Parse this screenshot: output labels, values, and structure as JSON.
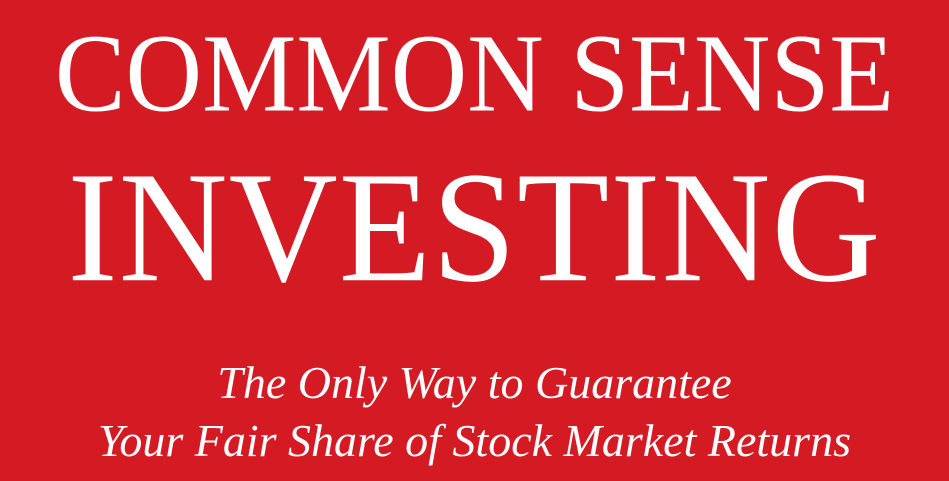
{
  "cover": {
    "background_color": "#d41a22",
    "text_color": "#ffffff",
    "title_lines": [
      "COMMON SENSE",
      "INVESTING"
    ],
    "subtitle_lines": [
      "The Only Way to Guarantee",
      "Your Fair Share of Stock Market Returns"
    ]
  }
}
